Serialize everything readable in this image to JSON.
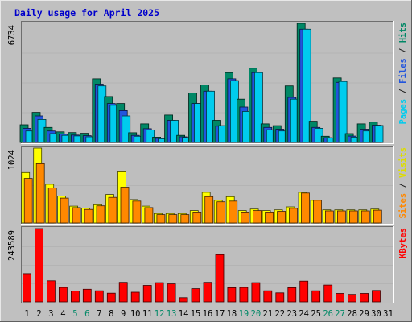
{
  "chart_data": {
    "type": "bar",
    "title": "Daily usage for April 2025",
    "days": [
      "1",
      "2",
      "3",
      "4",
      "5",
      "6",
      "7",
      "8",
      "9",
      "10",
      "11",
      "12",
      "13",
      "14",
      "15",
      "16",
      "17",
      "18",
      "19",
      "20",
      "21",
      "22",
      "23",
      "24",
      "25",
      "26",
      "27",
      "28",
      "29",
      "30",
      "31"
    ],
    "weekend_days": [
      "5",
      "6",
      "12",
      "13",
      "19",
      "20",
      "26",
      "27"
    ],
    "panels": [
      {
        "id": "top",
        "ymax_label": "6734",
        "ymax": 6734,
        "right_labels": [
          {
            "text": "Pages",
            "color": "#00ccee"
          },
          {
            "text": " / ",
            "color": "#222222"
          },
          {
            "text": "Files",
            "color": "#2255dd"
          },
          {
            "text": " / ",
            "color": "#222222"
          },
          {
            "text": "Hits",
            "color": "#008866"
          }
        ],
        "series": [
          {
            "name": "Hits",
            "color": "#008866",
            "values": [
              1000,
              1700,
              850,
              600,
              560,
              520,
              3600,
              2600,
              2200,
              550,
              1050,
              300,
              1550,
              400,
              2800,
              3250,
              1250,
              3950,
              2450,
              4200,
              1050,
              950,
              3200,
              6734,
              1200,
              350,
              3650,
              500,
              1050,
              1150,
              0
            ]
          },
          {
            "name": "Files",
            "color": "#2255dd",
            "values": [
              800,
              1500,
              650,
              480,
              420,
              380,
              3300,
              2200,
              1800,
              400,
              780,
              230,
              1250,
              320,
              2200,
              2900,
              920,
              3600,
              2000,
              3950,
              850,
              750,
              2550,
              6400,
              850,
              270,
              3400,
              360,
              750,
              980,
              0
            ]
          },
          {
            "name": "Pages",
            "color": "#00ccee",
            "values": [
              650,
              1300,
              500,
              400,
              370,
              320,
              3200,
              2100,
              1500,
              350,
              700,
              210,
              1250,
              280,
              2200,
              2900,
              950,
              3500,
              1750,
              3950,
              720,
              650,
              2450,
              6400,
              800,
              250,
              3450,
              300,
              650,
              960,
              0
            ]
          }
        ]
      },
      {
        "id": "middle",
        "ymax_label": "1024",
        "ymax": 1024,
        "right_labels": [
          {
            "text": "Sites",
            "color": "#ff8800"
          },
          {
            "text": " / ",
            "color": "#222222"
          },
          {
            "text": "Visits",
            "color": "#dddd00"
          }
        ],
        "series": [
          {
            "name": "Visits",
            "color": "#ffff00",
            "values": [
              690,
              1024,
              530,
              370,
              230,
              205,
              250,
              390,
              700,
              320,
              230,
              130,
              130,
              130,
              170,
              420,
              310,
              360,
              170,
              190,
              170,
              180,
              220,
              420,
              310,
              180,
              180,
              180,
              180,
              190,
              0
            ]
          },
          {
            "name": "Sites",
            "color": "#ff8800",
            "values": [
              610,
              810,
              480,
              340,
              210,
              185,
              235,
              350,
              490,
              300,
              210,
              115,
              115,
              115,
              150,
              360,
              290,
              300,
              150,
              170,
              150,
              160,
              200,
              410,
              310,
              165,
              165,
              165,
              165,
              175,
              0
            ]
          }
        ]
      },
      {
        "id": "bottom",
        "ymax_label": "243589",
        "ymax": 243589,
        "right_labels": [
          {
            "text": "KBytes",
            "color": "#ff0000"
          }
        ],
        "series": [
          {
            "name": "KBytes",
            "color": "#ff0000",
            "values": [
              94000,
              243589,
              70000,
              48000,
              36000,
              42000,
              37000,
              29000,
              65000,
              32000,
              55000,
              64000,
              60000,
              14000,
              44000,
              65000,
              157000,
              47000,
              48000,
              64000,
              37000,
              30000,
              47000,
              69000,
              37000,
              56000,
              28000,
              25000,
              28000,
              38000,
              0
            ]
          }
        ]
      }
    ],
    "grid": true,
    "background": "#c0c0c0",
    "plot_background": "#bebebe",
    "title_color": "#0000cc",
    "weekday_label_color": "#000000",
    "weekend_label_color": "#008866"
  }
}
